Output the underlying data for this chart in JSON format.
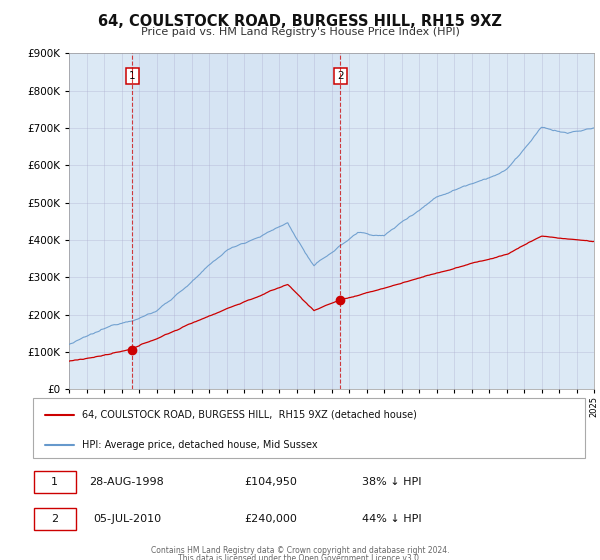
{
  "title": "64, COULSTOCK ROAD, BURGESS HILL, RH15 9XZ",
  "subtitle": "Price paid vs. HM Land Registry's House Price Index (HPI)",
  "sale1_date": "28-AUG-1998",
  "sale1_price": 104950,
  "sale1_year": 1998.622,
  "sale1_label": "1",
  "sale1_pct": "38%",
  "sale2_date": "05-JUL-2010",
  "sale2_price": 240000,
  "sale2_year": 2010.503,
  "sale2_label": "2",
  "sale2_pct": "44%",
  "legend_red": "64, COULSTOCK ROAD, BURGESS HILL,  RH15 9XZ (detached house)",
  "legend_blue": "HPI: Average price, detached house, Mid Sussex",
  "footer1": "Contains HM Land Registry data © Crown copyright and database right 2024.",
  "footer2": "This data is licensed under the Open Government Licence v3.0.",
  "fig_bg": "#ffffff",
  "plot_bg": "#dce9f5",
  "red_color": "#cc0000",
  "blue_color": "#6699cc",
  "grid_color": "#aaaacc",
  "ylim_max": 900000,
  "year_start": 1995,
  "year_end": 2025
}
